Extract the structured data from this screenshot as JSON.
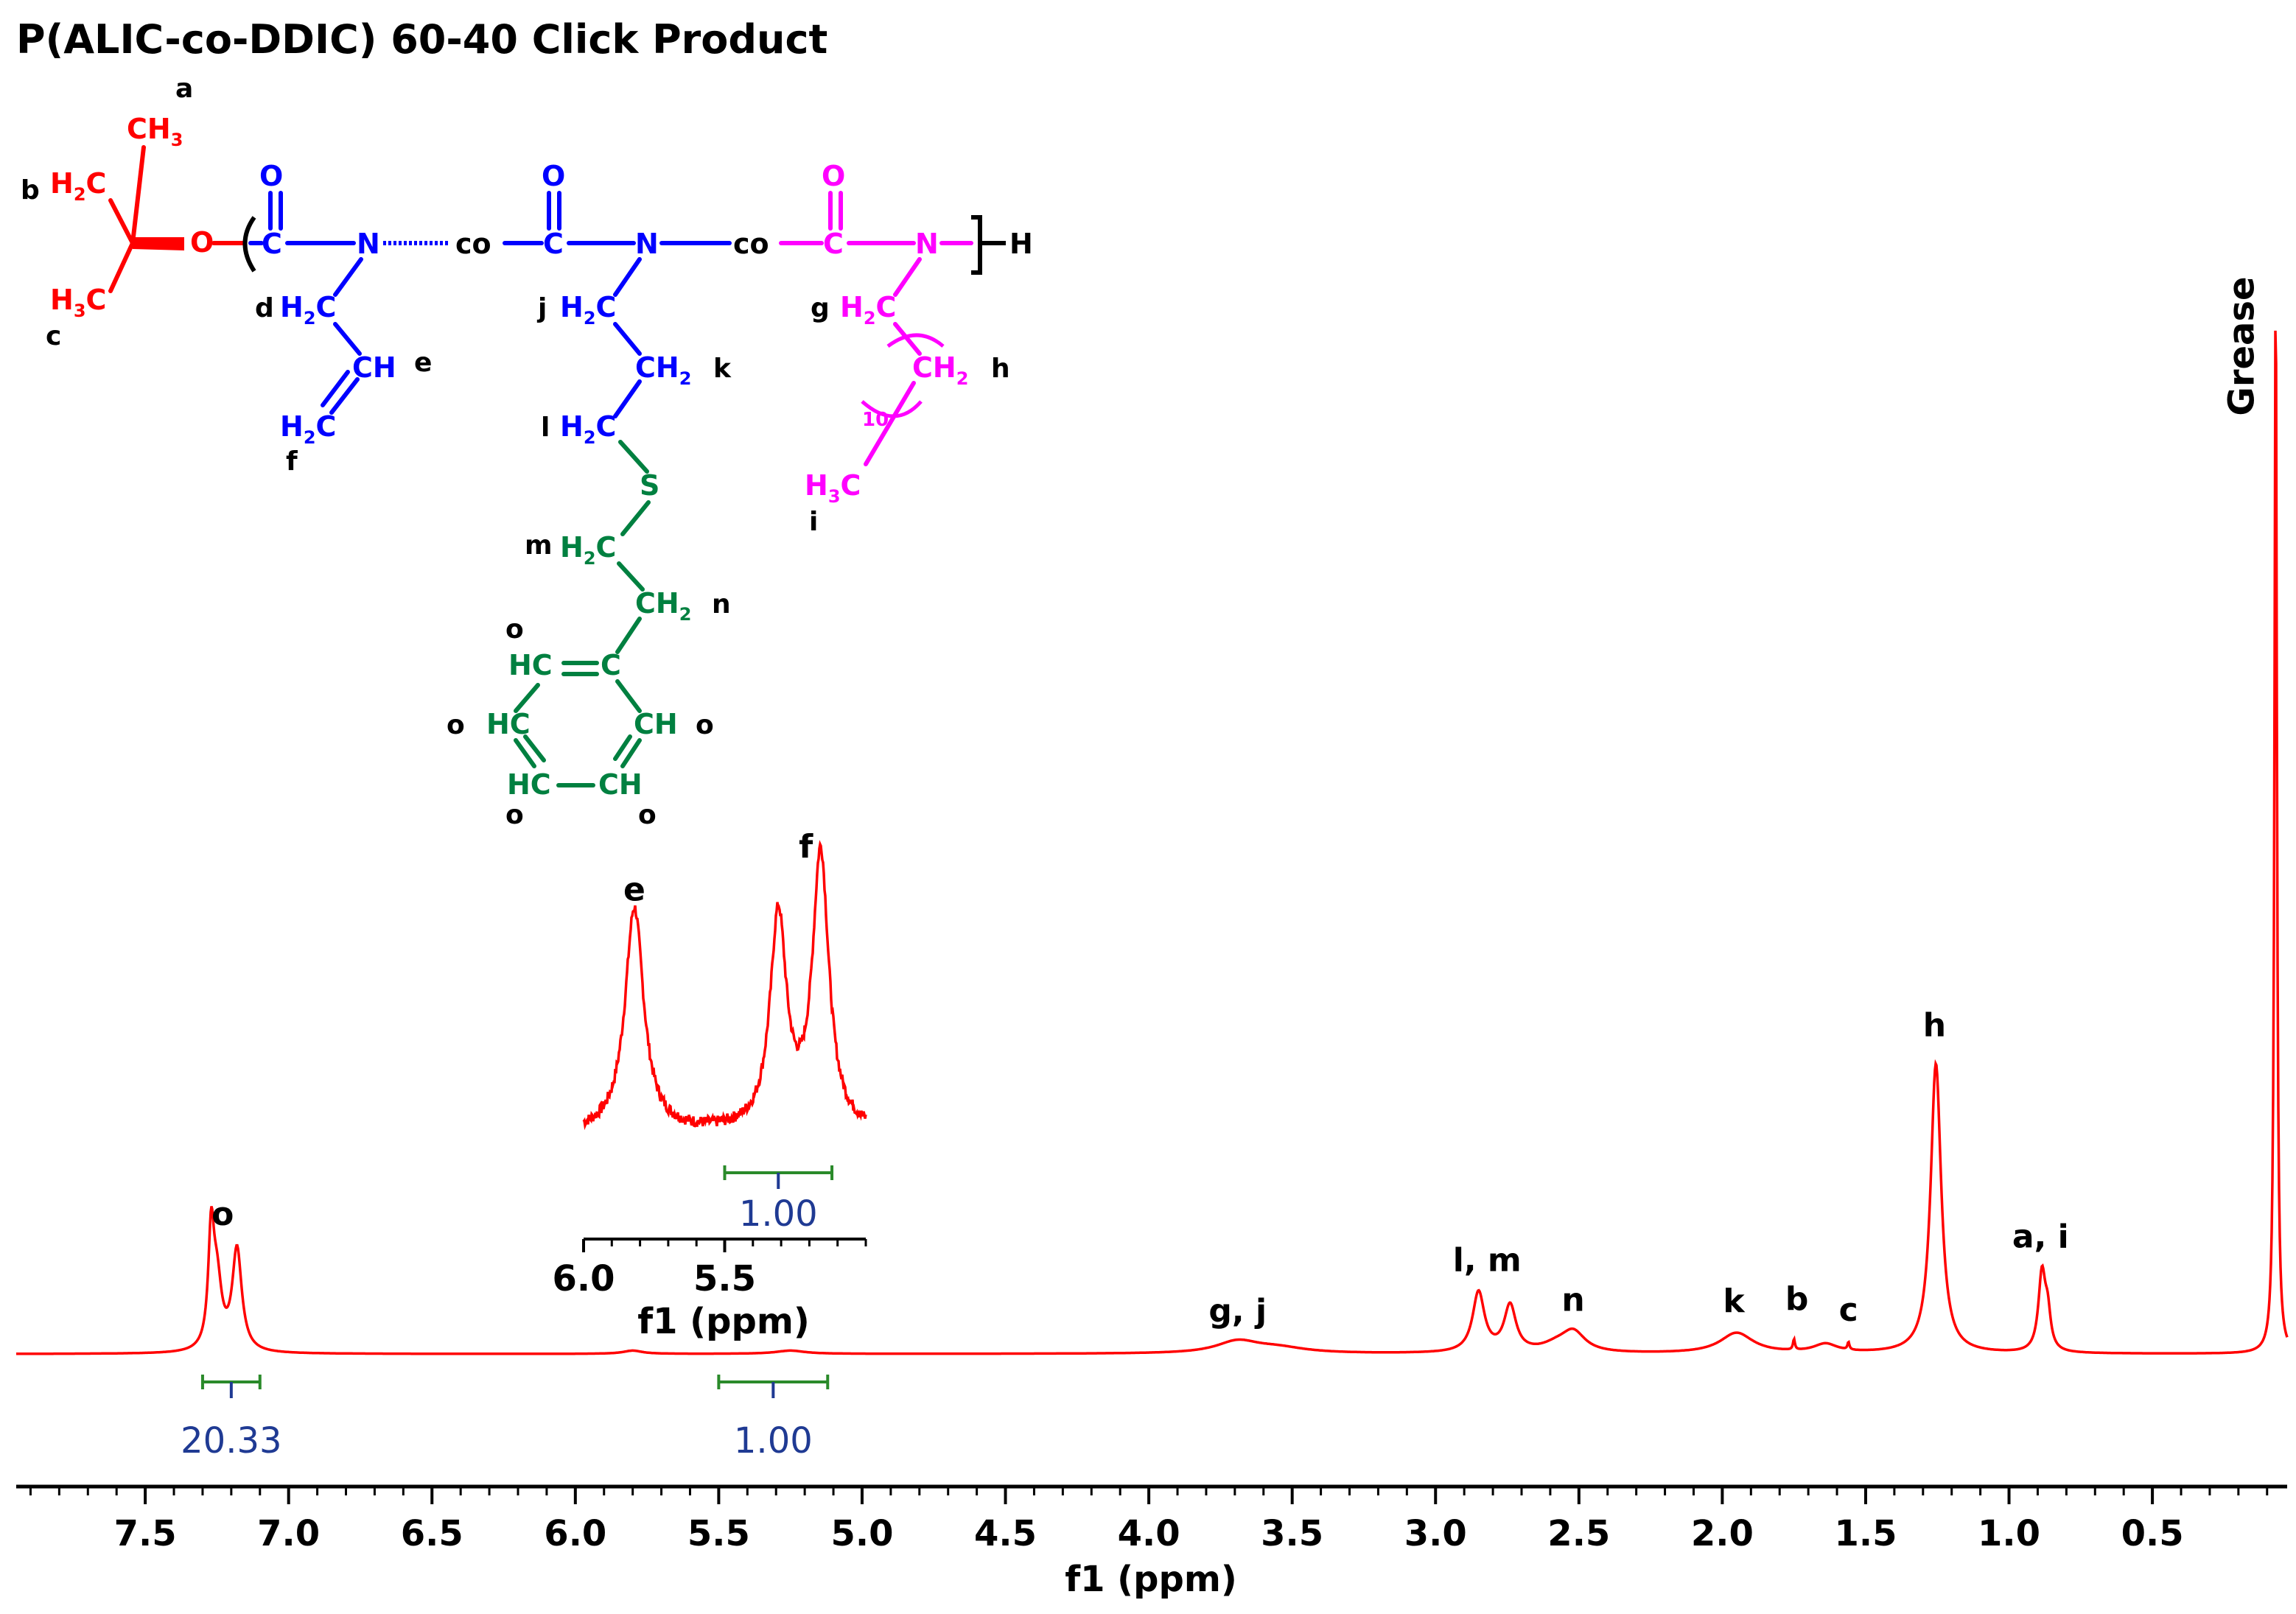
{
  "chart_data": [
    {
      "type": "line",
      "chart": "main-spectrum",
      "title": "P(ALIC-co-DDIC) 60-40 Click Product",
      "xlabel": "f1 (ppm)",
      "ylabel": "",
      "xlim": [
        7.95,
        0.03
      ],
      "x_reversed": true,
      "ylim": [
        0,
        100
      ],
      "grid": false,
      "line_color": "#ff0000",
      "x_ticks": [
        "7.5",
        "7.0",
        "6.5",
        "6.0",
        "5.5",
        "5.0",
        "4.5",
        "4.0",
        "3.5",
        "3.0",
        "2.5",
        "2.0",
        "1.5",
        "1.0",
        "0.5"
      ],
      "series": [
        {
          "peaks": [
            {
              "ppm": 7.27,
              "height": 10.1,
              "width": 0.012
            },
            {
              "ppm": 7.25,
              "height": 6.2,
              "width": 0.02
            },
            {
              "ppm": 7.18,
              "height": 9.5,
              "width": 0.02
            },
            {
              "ppm": 5.8,
              "height": 0.3,
              "width": 0.04
            },
            {
              "ppm": 5.25,
              "height": 0.3,
              "width": 0.06
            },
            {
              "ppm": 3.69,
              "height": 1.1,
              "width": 0.09
            },
            {
              "ppm": 3.55,
              "height": 0.5,
              "width": 0.12
            },
            {
              "ppm": 2.85,
              "height": 5.6,
              "width": 0.025
            },
            {
              "ppm": 2.74,
              "height": 4.3,
              "width": 0.025
            },
            {
              "ppm": 2.52,
              "height": 1.9,
              "width": 0.05
            },
            {
              "ppm": 2.58,
              "height": 0.6,
              "width": 0.06
            },
            {
              "ppm": 1.95,
              "height": 1.9,
              "width": 0.07
            },
            {
              "ppm": 1.75,
              "height": 1.0,
              "width": 0.004
            },
            {
              "ppm": 1.64,
              "height": 0.8,
              "width": 0.05
            },
            {
              "ppm": 1.56,
              "height": 0.7,
              "width": 0.004
            },
            {
              "ppm": 1.255,
              "height": 27.0,
              "width": 0.022
            },
            {
              "ppm": 0.885,
              "height": 7.3,
              "width": 0.015
            },
            {
              "ppm": 0.865,
              "height": 3.0,
              "width": 0.012
            },
            {
              "ppm": 0.07,
              "height": 100,
              "width": 0.005
            }
          ]
        }
      ],
      "annotations": [
        {
          "label": "o",
          "ppm": 7.23,
          "height": 12.0
        },
        {
          "label": "g, j",
          "ppm": 3.69,
          "height": 3.0
        },
        {
          "label": "l, m",
          "ppm": 2.82,
          "height": 7.7
        },
        {
          "label": "n",
          "ppm": 2.52,
          "height": 4.0
        },
        {
          "label": "k",
          "ppm": 1.96,
          "height": 3.9
        },
        {
          "label": "b",
          "ppm": 1.74,
          "height": 4.1
        },
        {
          "label": "c",
          "ppm": 1.56,
          "height": 3.1
        },
        {
          "label": "h",
          "ppm": 1.26,
          "height": 29.6
        },
        {
          "label": "a, i",
          "ppm": 0.89,
          "height": 9.9
        }
      ],
      "vertical_annotation": {
        "label": "Grease",
        "ppm": 0.07
      },
      "integrals": [
        {
          "from": 7.3,
          "to": 7.1,
          "value": "20.33"
        },
        {
          "from": 5.5,
          "to": 5.12,
          "value": "1.00"
        }
      ]
    },
    {
      "type": "line",
      "chart": "inset-vinyl-region",
      "title": "",
      "xlabel": "f1 (ppm)",
      "ylabel": "",
      "xlim": [
        6.0,
        5.0
      ],
      "x_reversed": true,
      "ylim": [
        0,
        100
      ],
      "x_ticks": [
        "6.0",
        "5.5"
      ],
      "line_color": "#ff0000",
      "series": [
        {
          "peaks": [
            {
              "ppm": 5.82,
              "height": 78,
              "width": 0.04
            },
            {
              "ppm": 5.31,
              "height": 74,
              "width": 0.035
            },
            {
              "ppm": 5.16,
              "height": 96,
              "width": 0.035
            }
          ]
        }
      ],
      "annotations": [
        {
          "label": "e",
          "ppm": 5.82,
          "height": 84
        },
        {
          "label": "f",
          "ppm": 5.16,
          "height": 99
        }
      ],
      "integrals": [
        {
          "from": 5.5,
          "to": 5.12,
          "value": "1.00"
        }
      ]
    }
  ],
  "structure": {
    "title": "P(ALIC-co-DDIC) 60-40 Click Product",
    "colors": {
      "initiator": "#ff0000",
      "alic": "#0000ff",
      "ddic": "#ff00ff",
      "click": "#008040"
    },
    "labels": {
      "a": "a",
      "b": "b",
      "c": "c",
      "d": "d",
      "e": "e",
      "f": "f",
      "g": "g",
      "h": "h",
      "i": "i",
      "j": "j",
      "k": "k",
      "l": "l",
      "m": "m",
      "n": "n",
      "o": "o",
      "co": "co",
      "o_atom": "O",
      "n_atom": "N",
      "c_atom": "C",
      "s_atom": "S",
      "h_end": "H",
      "ch3": "CH",
      "ch2": "CH",
      "h2c": "H",
      "h3c": "H",
      "ch": "CH",
      "hc": "HC",
      "sub2": "2",
      "sub3": "3",
      "rep10": "10"
    }
  }
}
